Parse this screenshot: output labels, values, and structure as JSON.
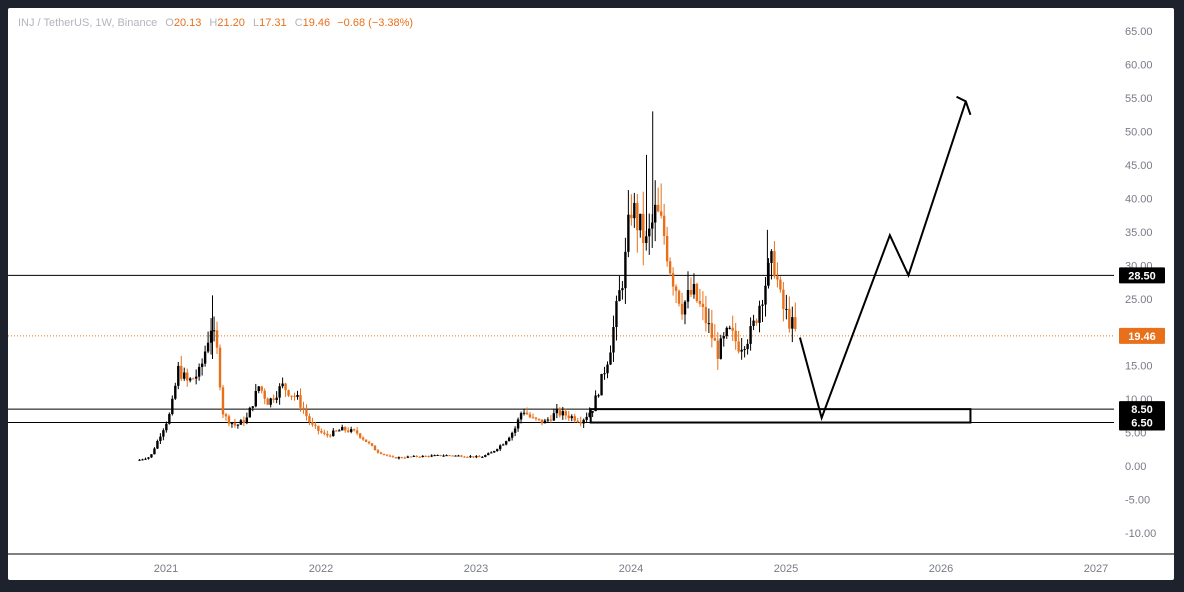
{
  "header": {
    "symbol": "INJ / TetherUS, 1W, Binance",
    "o_label": "O",
    "o": "20.13",
    "h_label": "H",
    "h": "21.20",
    "l_label": "L",
    "l": "17.31",
    "c_label": "C",
    "c": "19.46",
    "change": "−0.68 (−3.38%)"
  },
  "colors": {
    "up": "#000000",
    "down": "#e8701a",
    "price_line": "#e8701a",
    "level_line": "#000000",
    "axis_text": "#787b86"
  },
  "chart_data": {
    "type": "candlestick",
    "interval": "1W",
    "ylim": [
      -12,
      67
    ],
    "xlim": [
      2020.3,
      2027.1
    ],
    "y_ticks": [
      "65.00",
      "60.00",
      "55.00",
      "50.00",
      "45.00",
      "40.00",
      "35.00",
      "30.00",
      "25.00",
      "20.00",
      "15.00",
      "10.00",
      "5.00",
      "0.00",
      "-5.00",
      "-10.00"
    ],
    "y_tick_values": [
      65,
      60,
      55,
      50,
      45,
      40,
      35,
      30,
      25,
      20,
      15,
      10,
      5,
      0,
      -5,
      -10
    ],
    "x_ticks": [
      "2021",
      "2022",
      "2023",
      "2024",
      "2025",
      "2026",
      "2027"
    ],
    "x_tick_values": [
      2021,
      2022,
      2023,
      2024,
      2025,
      2026,
      2027
    ],
    "current_price": 19.46,
    "current_price_label": "19.46",
    "levels": [
      {
        "value": 28.5,
        "label": "28.50"
      },
      {
        "value": 8.5,
        "label": "8.50"
      },
      {
        "value": 6.5,
        "label": "6.50"
      }
    ],
    "support_zone": {
      "x_start": 2023.74,
      "x_end": 2026.19,
      "y_low": 6.5,
      "y_high": 8.5
    },
    "projection_path": [
      {
        "x": 2025.09,
        "y": 19.2
      },
      {
        "x": 2025.23,
        "y": 7.2
      },
      {
        "x": 2025.67,
        "y": 34.5
      },
      {
        "x": 2025.79,
        "y": 28.5
      },
      {
        "x": 2026.16,
        "y": 54.5
      }
    ],
    "arrow_head": [
      {
        "x": 2026.1,
        "y": 55.2
      },
      {
        "x": 2026.16,
        "y": 54.5
      },
      {
        "x": 2026.19,
        "y": 52.5
      }
    ],
    "price_anchors": [
      {
        "x": 2020.81,
        "y": 0.8
      },
      {
        "x": 2020.9,
        "y": 1.4
      },
      {
        "x": 2020.96,
        "y": 4.5
      },
      {
        "x": 2021.03,
        "y": 8.0
      },
      {
        "x": 2021.08,
        "y": 14.5
      },
      {
        "x": 2021.14,
        "y": 12.5
      },
      {
        "x": 2021.22,
        "y": 14.0
      },
      {
        "x": 2021.29,
        "y": 21.0
      },
      {
        "x": 2021.33,
        "y": 17.0
      },
      {
        "x": 2021.37,
        "y": 7.5
      },
      {
        "x": 2021.45,
        "y": 6.0
      },
      {
        "x": 2021.52,
        "y": 7.0
      },
      {
        "x": 2021.6,
        "y": 12.0
      },
      {
        "x": 2021.66,
        "y": 9.5
      },
      {
        "x": 2021.75,
        "y": 12.0
      },
      {
        "x": 2021.85,
        "y": 10.0
      },
      {
        "x": 2021.94,
        "y": 6.0
      },
      {
        "x": 2022.03,
        "y": 4.5
      },
      {
        "x": 2022.14,
        "y": 5.5
      },
      {
        "x": 2022.23,
        "y": 5.0
      },
      {
        "x": 2022.36,
        "y": 2.2
      },
      {
        "x": 2022.46,
        "y": 1.2
      },
      {
        "x": 2022.6,
        "y": 1.4
      },
      {
        "x": 2022.8,
        "y": 1.6
      },
      {
        "x": 2022.92,
        "y": 1.5
      },
      {
        "x": 2023.03,
        "y": 1.3
      },
      {
        "x": 2023.1,
        "y": 2.0
      },
      {
        "x": 2023.18,
        "y": 3.5
      },
      {
        "x": 2023.25,
        "y": 5.5
      },
      {
        "x": 2023.3,
        "y": 8.5
      },
      {
        "x": 2023.36,
        "y": 7.0
      },
      {
        "x": 2023.44,
        "y": 6.5
      },
      {
        "x": 2023.52,
        "y": 8.0
      },
      {
        "x": 2023.6,
        "y": 7.5
      },
      {
        "x": 2023.68,
        "y": 6.8
      },
      {
        "x": 2023.75,
        "y": 8.5
      },
      {
        "x": 2023.8,
        "y": 12.0
      },
      {
        "x": 2023.86,
        "y": 17.0
      },
      {
        "x": 2023.92,
        "y": 25.0
      },
      {
        "x": 2023.96,
        "y": 30.0
      },
      {
        "x": 2024.0,
        "y": 39.0
      },
      {
        "x": 2024.05,
        "y": 36.0
      },
      {
        "x": 2024.1,
        "y": 33.0
      },
      {
        "x": 2024.16,
        "y": 38.0
      },
      {
        "x": 2024.21,
        "y": 35.0
      },
      {
        "x": 2024.26,
        "y": 29.0
      },
      {
        "x": 2024.33,
        "y": 24.0
      },
      {
        "x": 2024.4,
        "y": 26.0
      },
      {
        "x": 2024.48,
        "y": 22.0
      },
      {
        "x": 2024.56,
        "y": 17.0
      },
      {
        "x": 2024.63,
        "y": 20.0
      },
      {
        "x": 2024.7,
        "y": 18.0
      },
      {
        "x": 2024.78,
        "y": 20.0
      },
      {
        "x": 2024.86,
        "y": 27.0
      },
      {
        "x": 2024.92,
        "y": 31.0
      },
      {
        "x": 2024.97,
        "y": 24.0
      },
      {
        "x": 2025.04,
        "y": 21.0
      },
      {
        "x": 2025.07,
        "y": 19.46
      }
    ]
  }
}
